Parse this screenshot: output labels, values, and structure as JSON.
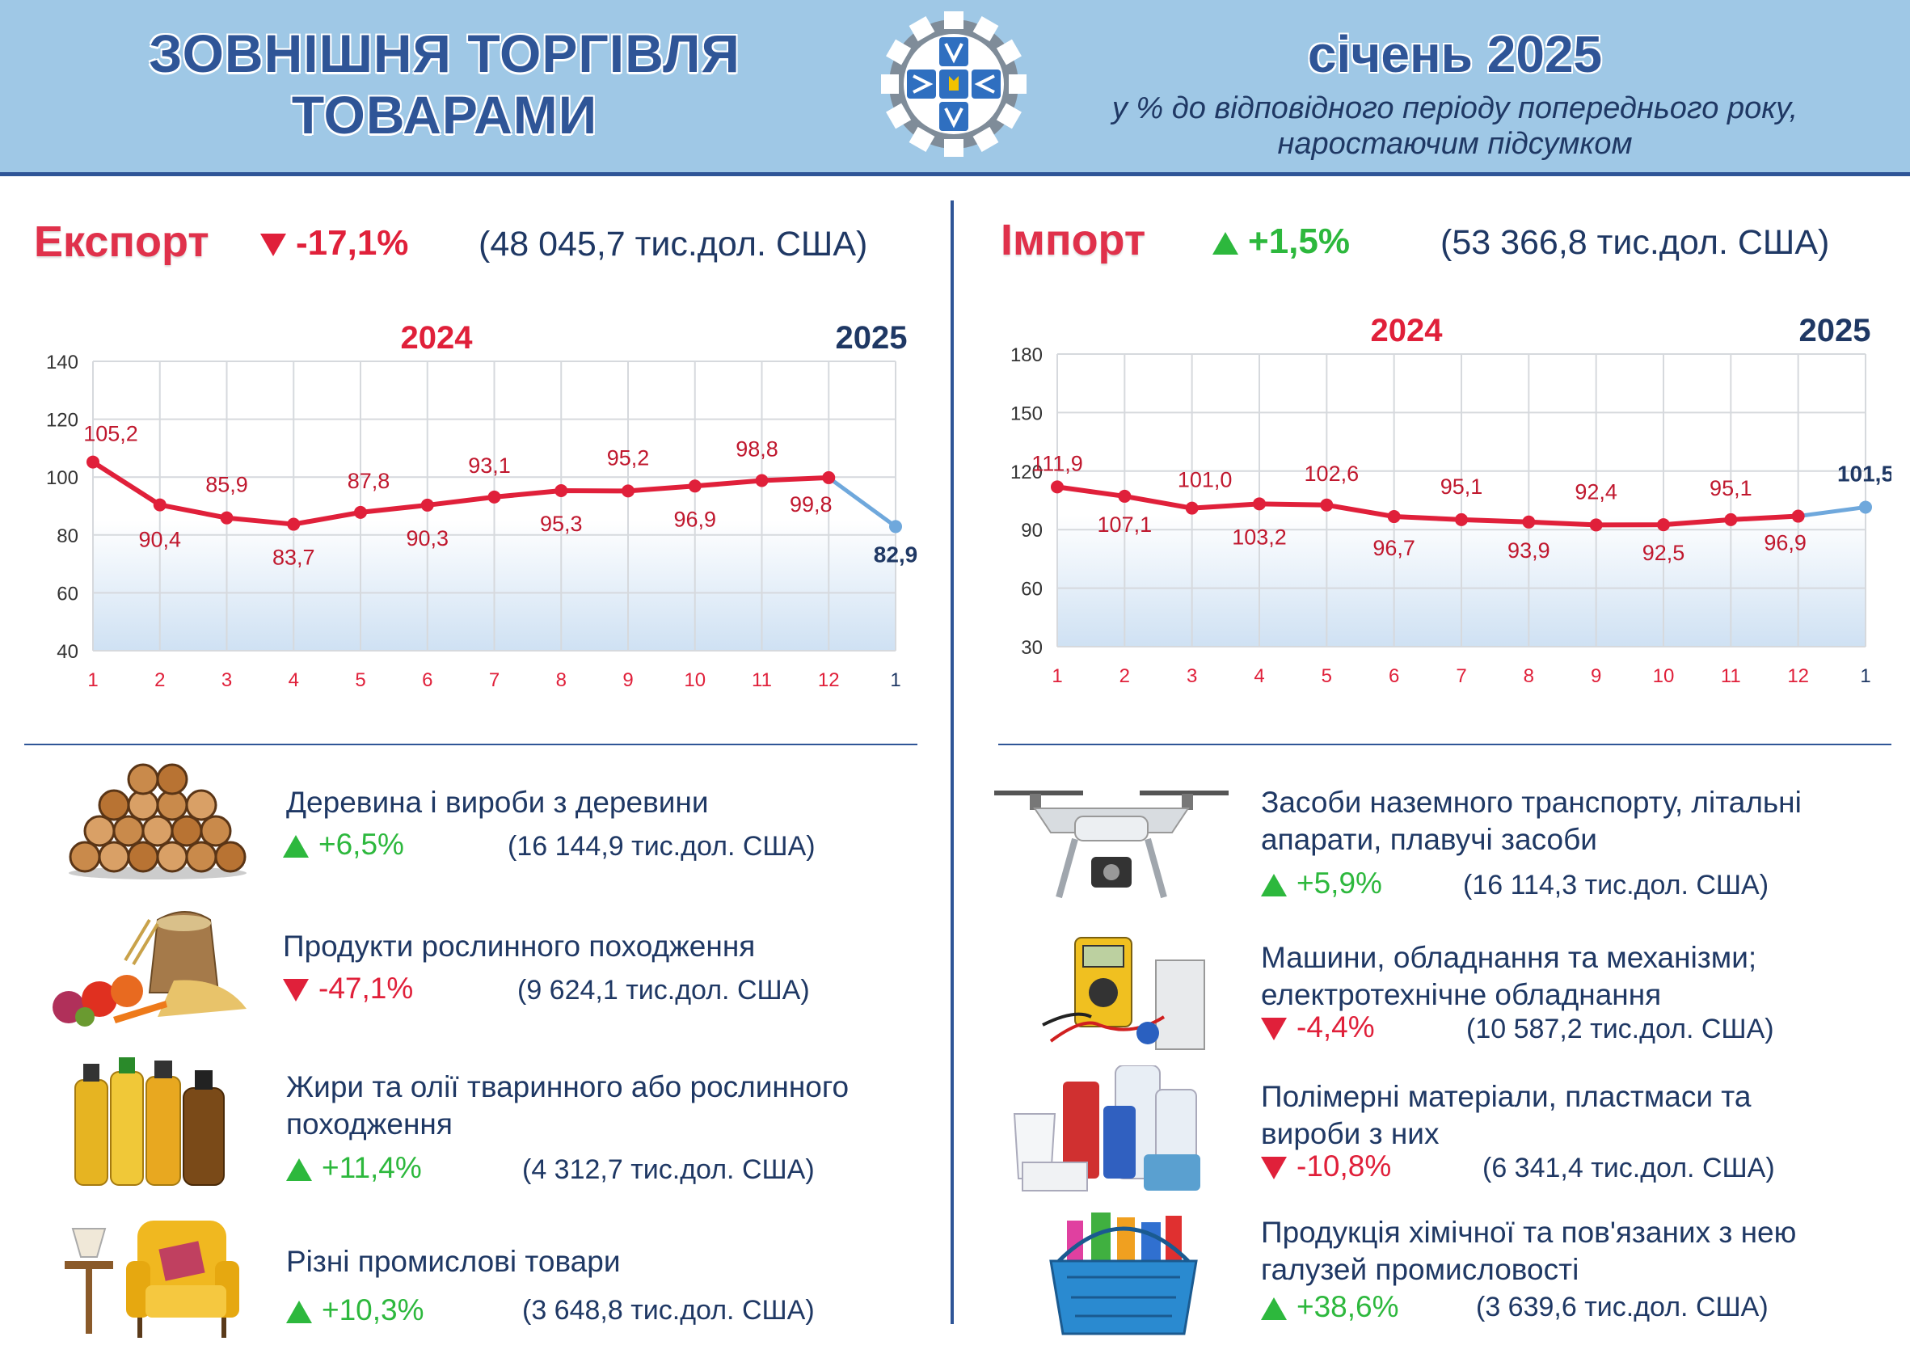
{
  "header": {
    "title_line1": "ЗОВНІШНЯ ТОРГІВЛЯ",
    "title_line2": "ТОВАРАМИ",
    "period": "січень 2025",
    "subtitle_line1": "у % до відповідного періоду попереднього року,",
    "subtitle_line2": "наростаючим підсумком"
  },
  "export": {
    "name": "Експорт",
    "change": "-17,1%",
    "value": "(48 045,7 тис.дол. США)",
    "items": [
      {
        "name_line1": "Деревина і вироби з деревини",
        "name_line2": "",
        "change": "+6,5%",
        "direction": "up",
        "value": "(16 144,9 тис.дол. США)",
        "icon": "firewood-icon"
      },
      {
        "name_line1": "Продукти рослинного походження",
        "name_line2": "",
        "change": "-47,1%",
        "direction": "down",
        "value": "(9 624,1 тис.дол. США)",
        "icon": "vegetables-grain-icon"
      },
      {
        "name_line1": "Жири та олії тваринного або рослинного",
        "name_line2": "походження",
        "change": "+11,4%",
        "direction": "up",
        "value": "(4 312,7 тис.дол. США)",
        "icon": "oil-bottles-icon"
      },
      {
        "name_line1": "Різні промислові товари",
        "name_line2": "",
        "change": "+10,3%",
        "direction": "up",
        "value": "(3 648,8 тис.дол. США)",
        "icon": "armchair-icon"
      }
    ]
  },
  "import": {
    "name": "Імпорт",
    "change": "+1,5%",
    "value": "(53 366,8 тис.дол. США)",
    "items": [
      {
        "name_line1": "Засоби наземного транспорту, літальні",
        "name_line2": "апарати, плавучі засоби",
        "change": "+5,9%",
        "direction": "up",
        "value": "(16 114,3 тис.дол. США)",
        "icon": "drone-icon"
      },
      {
        "name_line1": "Машини, обладнання та механізми;",
        "name_line2": "електротехнічне обладнання",
        "change": "-4,4%",
        "direction": "down",
        "value": "(10 587,2 тис.дол. США)",
        "icon": "multimeter-icon"
      },
      {
        "name_line1": "Полімерні матеріали, пластмаси та",
        "name_line2": "вироби з них",
        "change": "-10,8%",
        "direction": "down",
        "value": "(6 341,4 тис.дол. США)",
        "icon": "plastic-containers-icon"
      },
      {
        "name_line1": "Продукція хімічної та пов'язаних з нею",
        "name_line2": "галузей промисловості",
        "change": "+38,6%",
        "direction": "up",
        "value": "(3 639,6 тис.дол. США)",
        "icon": "cleaning-basket-icon"
      }
    ]
  },
  "chart_data": [
    {
      "type": "line",
      "year_labels": [
        "2024",
        "2025"
      ],
      "categories": [
        "1",
        "2",
        "3",
        "4",
        "5",
        "6",
        "7",
        "8",
        "9",
        "10",
        "11",
        "12",
        "1"
      ],
      "values": [
        105.2,
        90.4,
        85.9,
        83.7,
        87.8,
        90.3,
        93.1,
        95.3,
        95.2,
        96.9,
        98.8,
        99.8,
        82.9
      ],
      "value_labels": [
        "105,2",
        "90,4",
        "85,9",
        "83,7",
        "87,8",
        "90,3",
        "93,1",
        "95,3",
        "95,2",
        "96,9",
        "98,8",
        "99,8",
        "82,9"
      ],
      "yticks": [
        "40",
        "60",
        "80",
        "100",
        "120",
        "140"
      ],
      "ylim": [
        40,
        140
      ],
      "grid": true,
      "colors": {
        "2024": "#e0203a",
        "2025": "#6fa8dc"
      }
    },
    {
      "type": "line",
      "year_labels": [
        "2024",
        "2025"
      ],
      "categories": [
        "1",
        "2",
        "3",
        "4",
        "5",
        "6",
        "7",
        "8",
        "9",
        "10",
        "11",
        "12",
        "1"
      ],
      "values": [
        111.9,
        107.1,
        101.0,
        103.2,
        102.6,
        96.7,
        95.1,
        93.9,
        92.4,
        92.5,
        95.1,
        96.9,
        101.5
      ],
      "value_labels": [
        "111,9",
        "107,1",
        "101,0",
        "103,2",
        "102,6",
        "96,7",
        "95,1",
        "93,9",
        "92,4",
        "92,5",
        "95,1",
        "96,9",
        "101,5"
      ],
      "yticks": [
        "30",
        "60",
        "90",
        "120",
        "150",
        "180"
      ],
      "ylim": [
        30,
        180
      ],
      "grid": true,
      "colors": {
        "2024": "#e0203a",
        "2025": "#6fa8dc"
      }
    }
  ]
}
